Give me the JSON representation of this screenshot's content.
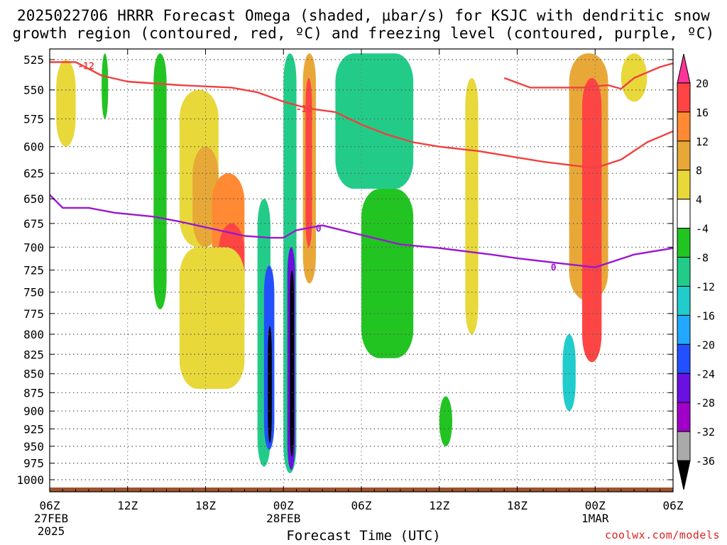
{
  "title_line1": "2025022706 HRRR Forecast Omega (shaded, μbar/s) for KSJC with dendritic snow",
  "title_line2": "growth region (contoured, red, ºC) and freezing level (contoured, purple, ºC)",
  "credit": "coolwx.com/models",
  "chart_data": {
    "type": "heatmap",
    "title": "2025022706 HRRR Forecast Omega (shaded, μbar/s) for KSJC with dendritic snow growth region (contoured, red, ºC) and freezing level (contoured, purple, ºC)",
    "xlabel": "Forecast Time (UTC)",
    "ylabel": "",
    "x_ticks": [
      {
        "hour": 0,
        "label": "06Z",
        "sub": [
          "27FEB",
          "2025"
        ]
      },
      {
        "hour": 6,
        "label": "12Z",
        "sub": []
      },
      {
        "hour": 12,
        "label": "18Z",
        "sub": []
      },
      {
        "hour": 18,
        "label": "00Z",
        "sub": [
          "28FEB"
        ]
      },
      {
        "hour": 24,
        "label": "06Z",
        "sub": []
      },
      {
        "hour": 30,
        "label": "12Z",
        "sub": []
      },
      {
        "hour": 36,
        "label": "18Z",
        "sub": []
      },
      {
        "hour": 42,
        "label": "00Z",
        "sub": [
          "1MAR"
        ]
      },
      {
        "hour": 48,
        "label": "06Z",
        "sub": []
      }
    ],
    "xlim": [
      0,
      48
    ],
    "y_ticks": [
      525,
      550,
      575,
      600,
      625,
      650,
      675,
      700,
      725,
      750,
      775,
      800,
      825,
      850,
      875,
      900,
      925,
      950,
      975,
      1000
    ],
    "ylim": [
      515,
      1010
    ],
    "y_scale": "log",
    "grid": true,
    "colorbar": {
      "labels": [
        "20",
        "16",
        "12",
        "8",
        "4",
        "-4",
        "-8",
        "-12",
        "-16",
        "-20",
        "-24",
        "-28",
        "-32",
        "-36"
      ],
      "colors": [
        "#ff3399",
        "#ff4444",
        "#ff8a33",
        "#e8a838",
        "#e8d83a",
        "#ffffff",
        "#22c422",
        "#22cc88",
        "#20cccc",
        "#22a8ff",
        "#2250ff",
        "#6a10e0",
        "#a000c8",
        "#aaaaaa",
        "#000000"
      ]
    },
    "series": [
      {
        "name": "-12",
        "color": "#f04040",
        "points": [
          [
            0,
            527
          ],
          [
            2,
            527
          ],
          [
            4,
            538
          ],
          [
            6,
            543
          ],
          [
            10,
            546
          ],
          [
            14,
            548
          ],
          [
            16,
            552
          ],
          [
            18,
            560
          ],
          [
            20,
            566
          ],
          [
            22,
            569
          ],
          [
            24,
            580
          ],
          [
            26,
            589
          ],
          [
            28,
            596
          ],
          [
            30,
            600
          ],
          [
            33,
            604
          ],
          [
            36,
            610
          ],
          [
            38,
            614
          ],
          [
            40,
            617
          ],
          [
            42,
            620
          ],
          [
            44,
            612
          ],
          [
            46,
            596
          ],
          [
            48,
            586
          ]
        ]
      },
      {
        "name": "-12",
        "color": "#f04040",
        "points": [
          [
            35,
            540
          ],
          [
            37,
            548
          ],
          [
            39,
            548
          ],
          [
            41,
            548
          ],
          [
            43,
            546
          ],
          [
            44,
            549
          ],
          [
            45,
            540
          ],
          [
            47,
            531
          ],
          [
            48,
            528
          ]
        ]
      },
      {
        "name": "0",
        "color": "#9a18d0",
        "points": [
          [
            0,
            646
          ],
          [
            1,
            659
          ],
          [
            3,
            659
          ],
          [
            5,
            664
          ],
          [
            8,
            668
          ],
          [
            10,
            673
          ],
          [
            12,
            679
          ],
          [
            15,
            688
          ],
          [
            17,
            690
          ],
          [
            18,
            690
          ],
          [
            19,
            682
          ],
          [
            21,
            677
          ],
          [
            24,
            687
          ],
          [
            27,
            697
          ],
          [
            30,
            701
          ],
          [
            34,
            708
          ],
          [
            36,
            712
          ],
          [
            39,
            717
          ],
          [
            42,
            722
          ],
          [
            45,
            708
          ],
          [
            48,
            701
          ]
        ]
      }
    ],
    "contour_labels": [
      {
        "text": "-12",
        "x": 2.8,
        "y": 530,
        "color": "#f04040"
      },
      {
        "text": "-12",
        "x": 19.6,
        "y": 566,
        "color": "#f04040"
      },
      {
        "text": "0",
        "x": 20.7,
        "y": 680,
        "color": "#9a18d0"
      },
      {
        "text": "0",
        "x": 38.8,
        "y": 722,
        "color": "#9a18d0"
      }
    ],
    "cells": [
      {
        "x": [
          0.5,
          2
        ],
        "y": [
          525,
          600
        ],
        "v": 6
      },
      {
        "x": [
          4,
          4.5
        ],
        "y": [
          520,
          575
        ],
        "v": -6
      },
      {
        "x": [
          10,
          13
        ],
        "y": [
          550,
          700
        ],
        "v": 6
      },
      {
        "x": [
          11,
          13
        ],
        "y": [
          600,
          700
        ],
        "v": 10
      },
      {
        "x": [
          12.5,
          15
        ],
        "y": [
          625,
          800
        ],
        "v": 14
      },
      {
        "x": [
          13,
          15
        ],
        "y": [
          675,
          800
        ],
        "v": 18
      },
      {
        "x": [
          10,
          15
        ],
        "y": [
          700,
          870
        ],
        "v": 6
      },
      {
        "x": [
          8,
          9
        ],
        "y": [
          520,
          770
        ],
        "v": -6
      },
      {
        "x": [
          16,
          17
        ],
        "y": [
          650,
          980
        ],
        "v": -10
      },
      {
        "x": [
          16.5,
          17.3
        ],
        "y": [
          720,
          955
        ],
        "v": -22
      },
      {
        "x": [
          16.8,
          17.1
        ],
        "y": [
          790,
          945
        ],
        "v": -38
      },
      {
        "x": [
          18,
          19
        ],
        "y": [
          520,
          990
        ],
        "v": -10
      },
      {
        "x": [
          18.3,
          18.9
        ],
        "y": [
          700,
          985
        ],
        "v": -26
      },
      {
        "x": [
          18.5,
          18.8
        ],
        "y": [
          725,
          965
        ],
        "v": -38
      },
      {
        "x": [
          19.5,
          20.5
        ],
        "y": [
          520,
          740
        ],
        "v": 10
      },
      {
        "x": [
          19.7,
          20.2
        ],
        "y": [
          540,
          700
        ],
        "v": 18
      },
      {
        "x": [
          22,
          28
        ],
        "y": [
          520,
          640
        ],
        "v": -10
      },
      {
        "x": [
          24,
          28
        ],
        "y": [
          640,
          830
        ],
        "v": -6
      },
      {
        "x": [
          30,
          31
        ],
        "y": [
          880,
          950
        ],
        "v": -6
      },
      {
        "x": [
          32,
          33
        ],
        "y": [
          540,
          800
        ],
        "v": 6
      },
      {
        "x": [
          40,
          43
        ],
        "y": [
          520,
          760
        ],
        "v": 10
      },
      {
        "x": [
          41,
          42.5
        ],
        "y": [
          540,
          835
        ],
        "v": 18
      },
      {
        "x": [
          39.5,
          40.5
        ],
        "y": [
          800,
          900
        ],
        "v": -14
      },
      {
        "x": [
          44,
          46
        ],
        "y": [
          520,
          560
        ],
        "v": 6
      }
    ],
    "surface": {
      "color": "#a0522d",
      "pressure_top": 1010
    }
  }
}
